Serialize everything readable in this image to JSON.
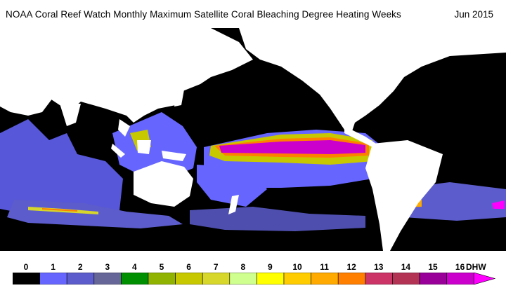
{
  "title": "NOAA Coral Reef Watch Monthly Maximum Satellite Coral Bleaching Degree Heating Weeks",
  "date": "Jun 2015",
  "legend": {
    "ticks": [
      "0",
      "1",
      "2",
      "3",
      "4",
      "5",
      "6",
      "7",
      "8",
      "9",
      "10",
      "11",
      "12",
      "13",
      "14",
      "15",
      "16"
    ],
    "unit": "DHW",
    "colors": [
      "#000000",
      "#6666ff",
      "#5c5ccc",
      "#666699",
      "#008f00",
      "#8fb300",
      "#c8c800",
      "#d6d62b",
      "#cfff8f",
      "#ffff00",
      "#ffcc00",
      "#ffaa00",
      "#ff7f00",
      "#cc3366",
      "#b33355",
      "#990099",
      "#cc00cc",
      "#ff00ff"
    ]
  },
  "map": {
    "land_color": "#ffffff",
    "ocean_color": "#000000",
    "region_of_interest": "Equatorial eastern Pacific (El Niño warming band)"
  }
}
